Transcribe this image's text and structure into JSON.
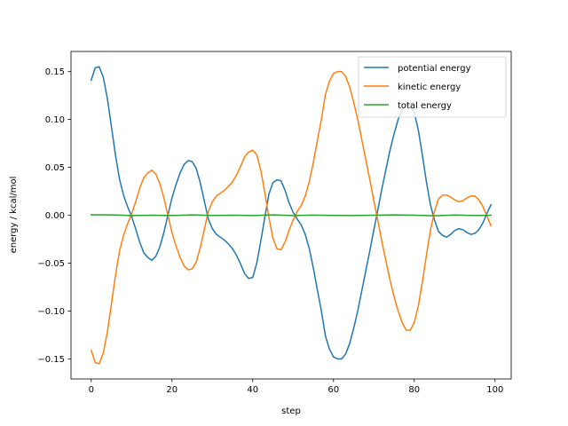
{
  "chart_data": {
    "type": "line",
    "xlabel": "step",
    "ylabel": "energy / kcal/mol",
    "xlim": [
      -5,
      104
    ],
    "ylim": [
      -0.171,
      0.171
    ],
    "xticks": [
      0,
      20,
      40,
      60,
      80,
      100
    ],
    "yticks": [
      -0.15,
      -0.1,
      -0.05,
      0.0,
      0.05,
      0.1,
      0.15
    ],
    "xtick_labels": [
      "0",
      "20",
      "40",
      "60",
      "80",
      "100"
    ],
    "ytick_labels": [
      "−0.15",
      "−0.10",
      "−0.05",
      "0.00",
      "0.05",
      "0.10",
      "0.15"
    ],
    "grid": false,
    "legend_position": "top-right",
    "series": [
      {
        "name": "potential energy",
        "color": "#1f77b4",
        "x": [
          0,
          1,
          2,
          3,
          4,
          5,
          6,
          7,
          8,
          9,
          10,
          11,
          12,
          13,
          14,
          15,
          16,
          17,
          18,
          19,
          20,
          21,
          22,
          23,
          24,
          25,
          26,
          27,
          28,
          29,
          30,
          31,
          32,
          33,
          34,
          35,
          36,
          37,
          38,
          39,
          40,
          41,
          42,
          43,
          44,
          45,
          46,
          47,
          48,
          49,
          50,
          51,
          52,
          53,
          54,
          55,
          56,
          57,
          58,
          59,
          60,
          61,
          62,
          63,
          64,
          65,
          66,
          67,
          68,
          69,
          70,
          71,
          72,
          73,
          74,
          75,
          76,
          77,
          78,
          79,
          80,
          81,
          82,
          83,
          84,
          85,
          86,
          87,
          88,
          89,
          90,
          91,
          92,
          93,
          94,
          95,
          96,
          97,
          98,
          99
        ],
        "values": [
          0.141,
          0.154,
          0.155,
          0.144,
          0.122,
          0.093,
          0.063,
          0.038,
          0.021,
          0.009,
          -0.001,
          -0.014,
          -0.028,
          -0.039,
          -0.044,
          -0.047,
          -0.043,
          -0.033,
          -0.018,
          0.0,
          0.018,
          0.032,
          0.044,
          0.053,
          0.057,
          0.056,
          0.049,
          0.034,
          0.015,
          -0.004,
          -0.014,
          -0.02,
          -0.023,
          -0.026,
          -0.03,
          -0.035,
          -0.042,
          -0.051,
          -0.061,
          -0.066,
          -0.065,
          -0.05,
          -0.027,
          -0.002,
          0.022,
          0.034,
          0.037,
          0.036,
          0.026,
          0.013,
          0.003,
          -0.004,
          -0.01,
          -0.02,
          -0.035,
          -0.055,
          -0.078,
          -0.1,
          -0.126,
          -0.14,
          -0.148,
          -0.15,
          -0.15,
          -0.145,
          -0.134,
          -0.118,
          -0.1,
          -0.079,
          -0.058,
          -0.037,
          -0.015,
          0.006,
          0.028,
          0.048,
          0.068,
          0.085,
          0.1,
          0.11,
          0.116,
          0.115,
          0.107,
          0.089,
          0.063,
          0.035,
          0.011,
          -0.005,
          -0.017,
          -0.021,
          -0.023,
          -0.02,
          -0.016,
          -0.014,
          -0.015,
          -0.018,
          -0.02,
          -0.019,
          -0.015,
          -0.008,
          0.002,
          0.011
        ]
      },
      {
        "name": "kinetic energy",
        "color": "#ff7f0e",
        "x": [
          0,
          1,
          2,
          3,
          4,
          5,
          6,
          7,
          8,
          9,
          10,
          11,
          12,
          13,
          14,
          15,
          16,
          17,
          18,
          19,
          20,
          21,
          22,
          23,
          24,
          25,
          26,
          27,
          28,
          29,
          30,
          31,
          32,
          33,
          34,
          35,
          36,
          37,
          38,
          39,
          40,
          41,
          42,
          43,
          44,
          45,
          46,
          47,
          48,
          49,
          50,
          51,
          52,
          53,
          54,
          55,
          56,
          57,
          58,
          59,
          60,
          61,
          62,
          63,
          64,
          65,
          66,
          67,
          68,
          69,
          70,
          71,
          72,
          73,
          74,
          75,
          76,
          77,
          78,
          79,
          80,
          81,
          82,
          83,
          84,
          85,
          86,
          87,
          88,
          89,
          90,
          91,
          92,
          93,
          94,
          95,
          96,
          97,
          98,
          99
        ],
        "values": [
          -0.141,
          -0.154,
          -0.155,
          -0.144,
          -0.122,
          -0.093,
          -0.063,
          -0.038,
          -0.021,
          -0.009,
          0.001,
          0.014,
          0.028,
          0.039,
          0.044,
          0.047,
          0.043,
          0.033,
          0.018,
          0.0,
          -0.018,
          -0.032,
          -0.044,
          -0.053,
          -0.057,
          -0.056,
          -0.049,
          -0.034,
          -0.015,
          0.004,
          0.014,
          0.02,
          0.023,
          0.026,
          0.03,
          0.035,
          0.042,
          0.051,
          0.061,
          0.066,
          0.068,
          0.063,
          0.047,
          0.023,
          -0.002,
          -0.024,
          -0.035,
          -0.036,
          -0.028,
          -0.016,
          -0.005,
          0.004,
          0.01,
          0.02,
          0.035,
          0.055,
          0.078,
          0.1,
          0.126,
          0.14,
          0.148,
          0.15,
          0.15,
          0.145,
          0.134,
          0.118,
          0.1,
          0.079,
          0.058,
          0.037,
          0.015,
          -0.006,
          -0.028,
          -0.048,
          -0.068,
          -0.085,
          -0.1,
          -0.112,
          -0.12,
          -0.12,
          -0.112,
          -0.095,
          -0.07,
          -0.042,
          -0.016,
          0.004,
          0.017,
          0.021,
          0.021,
          0.019,
          0.016,
          0.014,
          0.015,
          0.018,
          0.02,
          0.02,
          0.016,
          0.009,
          -0.001,
          -0.011
        ]
      },
      {
        "name": "total energy",
        "color": "#2ca02c",
        "x": [
          0,
          5,
          10,
          15,
          20,
          25,
          30,
          35,
          40,
          45,
          50,
          55,
          60,
          65,
          70,
          75,
          80,
          85,
          90,
          95,
          99
        ],
        "values": [
          0.0005,
          0.0004,
          -0.0003,
          0.0,
          -0.0004,
          0.0003,
          -0.0002,
          0.0,
          -0.0004,
          0.0003,
          -0.0003,
          0.0001,
          -0.0002,
          -0.0003,
          0.0,
          0.0004,
          0.0,
          -0.0006,
          0.0002,
          -0.0004,
          0.0
        ]
      }
    ]
  }
}
